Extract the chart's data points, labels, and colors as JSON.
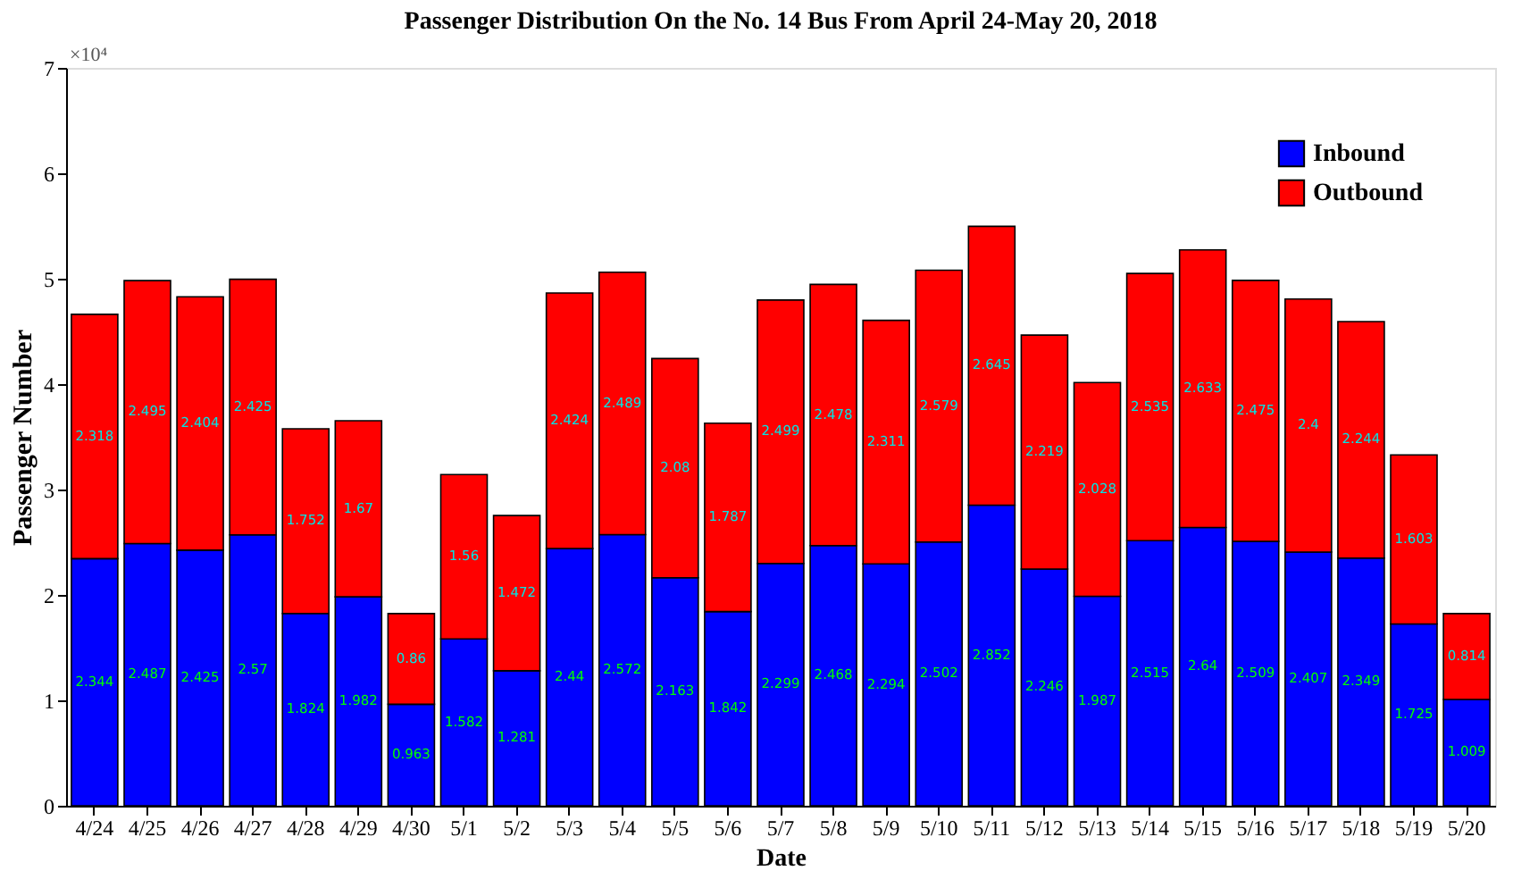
{
  "chart_data": {
    "type": "bar",
    "stacked": true,
    "title": "Passenger Distribution On the No. 14 Bus From April 24-May 20, 2018",
    "xlabel": "Date",
    "ylabel": "Passenger Number",
    "annotations": [
      "×10⁴"
    ],
    "categories": [
      "4/24",
      "4/25",
      "4/26",
      "4/27",
      "4/28",
      "4/29",
      "4/30",
      "5/1",
      "5/2",
      "5/3",
      "5/4",
      "5/5",
      "5/6",
      "5/7",
      "5/8",
      "5/9",
      "5/10",
      "5/11",
      "5/12",
      "5/13",
      "5/14",
      "5/15",
      "5/16",
      "5/17",
      "5/18",
      "5/19",
      "5/20"
    ],
    "series": [
      {
        "name": "Inbound",
        "color": "#0000ff",
        "values": [
          2.344,
          2.487,
          2.425,
          2.57,
          1.824,
          1.982,
          0.963,
          1.582,
          1.281,
          2.44,
          2.572,
          2.163,
          1.842,
          2.299,
          2.468,
          2.294,
          2.502,
          2.852,
          2.246,
          1.987,
          2.515,
          2.64,
          2.509,
          2.407,
          2.349,
          1.725,
          1.009
        ]
      },
      {
        "name": "Outbound",
        "color": "#ff0000",
        "values": [
          2.318,
          2.495,
          2.404,
          2.425,
          1.752,
          1.67,
          0.86,
          1.56,
          1.472,
          2.424,
          2.489,
          2.08,
          1.787,
          2.499,
          2.478,
          2.311,
          2.579,
          2.645,
          2.219,
          2.028,
          2.535,
          2.633,
          2.475,
          2.4,
          2.244,
          1.603,
          0.814
        ]
      }
    ],
    "ylim": [
      0,
      7
    ],
    "yticks": [
      0,
      1,
      2,
      3,
      4,
      5,
      6,
      7
    ],
    "data_labels": true,
    "legend": "top right",
    "grid": false
  }
}
